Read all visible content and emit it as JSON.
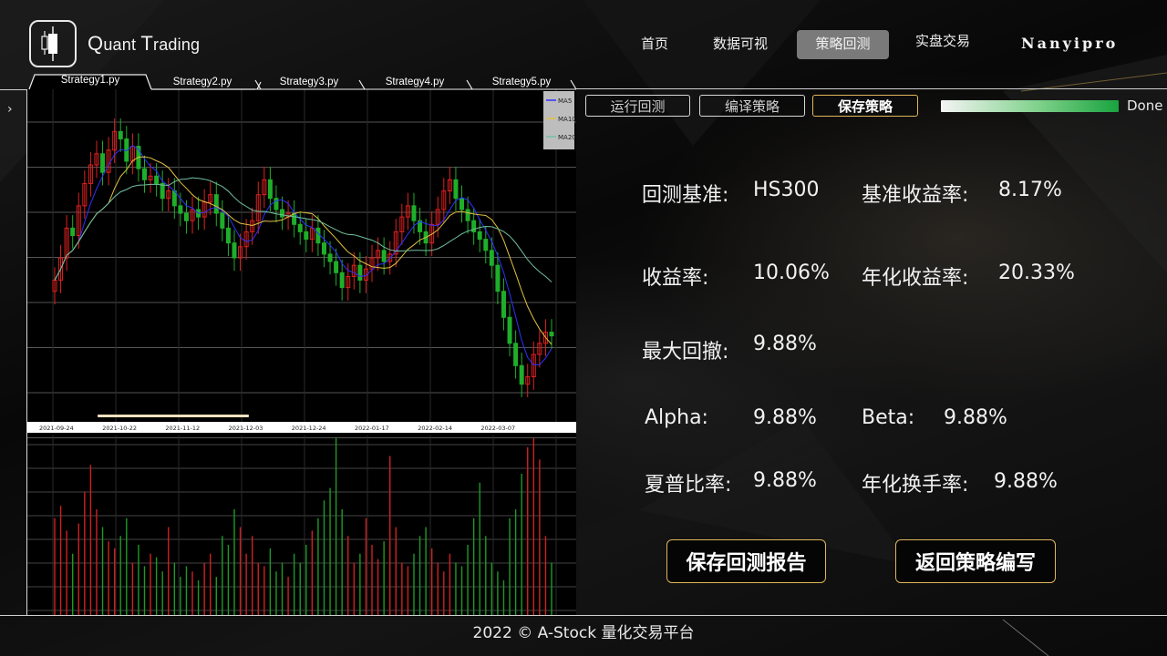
{
  "brand": {
    "q": "Q",
    "rest1": "uant ",
    "t": "T",
    "rest2": "rading"
  },
  "nav": {
    "items": [
      {
        "label": "首页",
        "active": false
      },
      {
        "label": "数据可视",
        "active": false
      },
      {
        "label": "策略回测",
        "active": true
      },
      {
        "label": "实盘交易",
        "active": false
      }
    ],
    "user": "Nanyipro"
  },
  "tabs": [
    "Strategy1.py",
    "Strategy2.py",
    "Strategy3.py",
    "Strategy4.py",
    "Strategy5.py"
  ],
  "toolbar": {
    "run": "运行回测",
    "compile": "编译策略",
    "save": "保存策略",
    "progress_label": "Done",
    "progress": 1.0
  },
  "metrics": {
    "benchmark_label": "回测基准:",
    "benchmark_value": "HS300",
    "bench_return_label": "基准收益率:",
    "bench_return_value": "8.17%",
    "return_label": "收益率:",
    "return_value": "10.06%",
    "annual_return_label": "年化收益率:",
    "annual_return_value": "20.33%",
    "max_drawdown_label": "最大回撤:",
    "max_drawdown_value": "9.88%",
    "alpha_label": "Alpha:",
    "alpha_value": "9.88%",
    "beta_label": "Beta:",
    "beta_value": "9.88%",
    "sharpe_label": "夏普比率:",
    "sharpe_value": "9.88%",
    "turnover_label": "年化换手率:",
    "turnover_value": "9.88%"
  },
  "actions": {
    "save_report": "保存回测报告",
    "back_to_edit": "返回策略编写"
  },
  "chart_data": {
    "type": "candlestick",
    "legend": [
      "MA5",
      "MA10",
      "MA20"
    ],
    "legend_colors": [
      "#3030ff",
      "#e0c040",
      "#70c0a0"
    ],
    "x_tick_labels": [
      "2021-09-24",
      "2021-10-22",
      "2021-11-12",
      "2021-12-03",
      "2021-12-24",
      "2022-01-17",
      "2022-02-14",
      "2022-03-07"
    ],
    "up_color": "#e02020",
    "down_color": "#1fae2a",
    "candles_close": [
      3.2,
      3.8,
      4.6,
      4.4,
      5.2,
      5.8,
      6.3,
      6.6,
      6.1,
      6.7,
      7.2,
      7.0,
      6.4,
      6.8,
      6.2,
      5.9,
      6.0,
      5.8,
      5.4,
      5.6,
      5.2,
      5.0,
      4.8,
      5.1,
      4.9,
      5.3,
      5.5,
      5.0,
      4.6,
      4.2,
      3.8,
      4.1,
      4.5,
      4.8,
      5.5,
      5.9,
      5.4,
      5.1,
      4.9,
      5.0,
      4.7,
      4.5,
      4.3,
      4.6,
      4.2,
      3.9,
      3.7,
      3.4,
      3.0,
      3.3,
      3.6,
      3.2,
      3.5,
      3.8,
      4.0,
      3.7,
      3.9,
      4.5,
      4.9,
      5.2,
      4.8,
      4.5,
      4.2,
      4.7,
      5.1,
      5.6,
      5.9,
      5.4,
      5.1,
      4.8,
      4.5,
      4.3,
      4.0,
      3.6,
      2.9,
      2.2,
      1.5,
      0.9,
      0.4,
      0.6,
      1.2,
      1.5,
      1.8,
      1.7
    ],
    "volume": [
      0.55,
      0.62,
      0.48,
      0.35,
      0.52,
      0.7,
      0.85,
      0.6,
      0.5,
      0.42,
      0.38,
      0.45,
      0.55,
      0.3,
      0.4,
      0.28,
      0.35,
      0.33,
      0.25,
      0.5,
      0.3,
      0.22,
      0.28,
      0.25,
      0.2,
      0.3,
      0.35,
      0.22,
      0.45,
      0.4,
      0.6,
      0.5,
      0.35,
      0.45,
      0.3,
      0.28,
      0.38,
      0.25,
      0.3,
      0.22,
      0.35,
      0.3,
      0.4,
      0.48,
      0.55,
      0.65,
      0.72,
      1.0,
      0.6,
      0.45,
      0.3,
      0.35,
      0.55,
      0.4,
      0.32,
      0.42,
      0.9,
      0.5,
      0.3,
      0.28,
      0.35,
      0.45,
      0.5,
      0.38,
      0.3,
      0.25,
      0.35,
      0.3,
      0.28,
      0.4,
      0.55,
      0.75,
      0.45,
      0.3,
      0.25,
      0.2,
      0.55,
      0.6,
      0.8,
      0.95,
      1.0,
      0.88,
      0.45,
      0.3
    ]
  }
}
